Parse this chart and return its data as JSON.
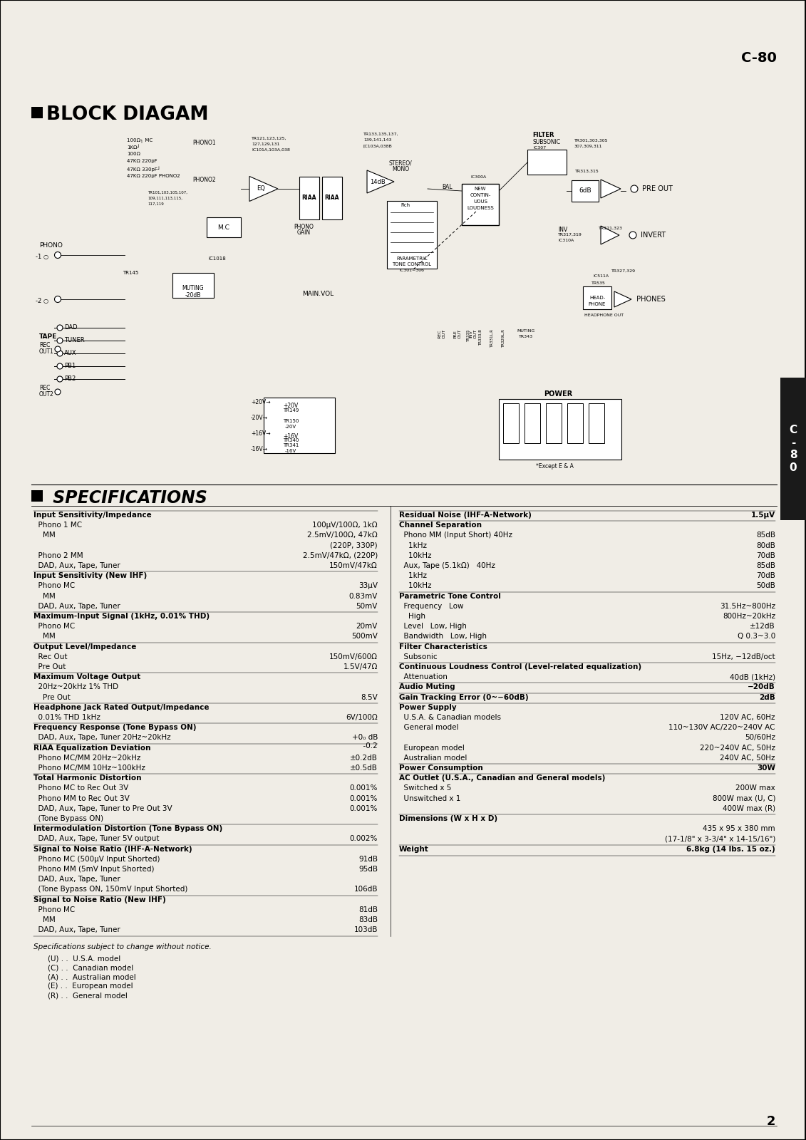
{
  "bg_color": "#f0ede6",
  "text_color": "#1a1a1a",
  "title_c80": "C-80",
  "block_diag_title": "BLOCK DIAGAM",
  "specs_title": "SPECIFICATIONS",
  "page_num": "2",
  "sidebar_color": "#222222",
  "specs_left": [
    [
      "Input Sensitivity/Impedance",
      "",
      "bold"
    ],
    [
      "  Phono 1 MC",
      "100μV/100Ω, 1kΩ",
      "normal"
    ],
    [
      "    MM",
      "2.5mV/100Ω, 47kΩ",
      "normal"
    ],
    [
      "",
      "(220P, 330P)",
      "normal"
    ],
    [
      "  Phono 2 MM",
      "2.5mV/47kΩ, (220P)",
      "normal"
    ],
    [
      "  DAD, Aux, Tape, Tuner",
      "150mV/47kΩ",
      "normal"
    ],
    [
      "Input Sensitivity (New IHF)",
      "",
      "bold"
    ],
    [
      "  Phono MC",
      "33μV",
      "normal"
    ],
    [
      "    MM",
      "0.83mV",
      "normal"
    ],
    [
      "  DAD, Aux, Tape, Tuner",
      "50mV",
      "normal"
    ],
    [
      "Maximum-Input Signal (1kHz, 0.01% THD)",
      "",
      "bold"
    ],
    [
      "  Phono MC",
      "20mV",
      "normal"
    ],
    [
      "    MM",
      "500mV",
      "normal"
    ],
    [
      "Output Level/Impedance",
      "",
      "bold"
    ],
    [
      "  Rec Out",
      "150mV/600Ω",
      "normal"
    ],
    [
      "  Pre Out",
      "1.5V/47Ω",
      "normal"
    ],
    [
      "Maximum Voltage Output",
      "",
      "bold"
    ],
    [
      "  20Hz~20kHz 1% THD",
      "",
      "normal"
    ],
    [
      "    Pre Out",
      "8.5V",
      "normal"
    ],
    [
      "Headphone Jack Rated Output/Impedance",
      "",
      "bold"
    ],
    [
      "  0.01% THD 1kHz",
      "6V/100Ω",
      "normal"
    ],
    [
      "Frequency Response (Tone Bypass ON)",
      "",
      "bold"
    ],
    [
      "  DAD, Aux, Tape, Tuner 20Hz~20kHz",
      "+0₀ dB\n  -0.2",
      "normal"
    ],
    [
      "RIAA Equalization Deviation",
      "",
      "bold"
    ],
    [
      "  Phono MC/MM 20Hz~20kHz",
      "±0.2dB",
      "normal"
    ],
    [
      "  Phono MC/MM 10Hz~100kHz",
      "±0.5dB",
      "normal"
    ],
    [
      "Total Harmonic Distortion",
      "",
      "bold"
    ],
    [
      "  Phono MC to Rec Out 3V",
      "0.001%",
      "normal"
    ],
    [
      "  Phono MM to Rec Out 3V",
      "0.001%",
      "normal"
    ],
    [
      "  DAD, Aux, Tape, Tuner to Pre Out 3V",
      "0.001%",
      "normal"
    ],
    [
      "  (Tone Bypass ON)",
      "",
      "normal"
    ],
    [
      "Intermodulation Distortion (Tone Bypass ON)",
      "",
      "bold"
    ],
    [
      "  DAD, Aux, Tape, Tuner 5V output",
      "0.002%",
      "normal"
    ],
    [
      "Signal to Noise Ratio (IHF-A-Network)",
      "",
      "bold"
    ],
    [
      "  Phono MC (500μV Input Shorted)",
      "91dB",
      "normal"
    ],
    [
      "  Phono MM (5mV Input Shorted)",
      "95dB",
      "normal"
    ],
    [
      "  DAD, Aux, Tape, Tuner",
      "",
      "normal"
    ],
    [
      "  (Tone Bypass ON, 150mV Input Shorted)",
      "106dB",
      "normal"
    ],
    [
      "Signal to Noise Ratio (New IHF)",
      "",
      "bold"
    ],
    [
      "  Phono MC",
      "81dB",
      "normal"
    ],
    [
      "    MM",
      "83dB",
      "normal"
    ],
    [
      "  DAD, Aux, Tape, Tuner",
      "103dB",
      "normal"
    ]
  ],
  "specs_right": [
    [
      "Residual Noise (IHF-A-Network)",
      "1.5μV",
      "bold"
    ],
    [
      "Channel Separation",
      "",
      "bold"
    ],
    [
      "  Phono MM (Input Short) 40Hz",
      "85dB",
      "normal"
    ],
    [
      "    1kHz",
      "80dB",
      "normal"
    ],
    [
      "    10kHz",
      "70dB",
      "normal"
    ],
    [
      "  Aux, Tape (5.1kΩ)   40Hz",
      "85dB",
      "normal"
    ],
    [
      "    1kHz",
      "70dB",
      "normal"
    ],
    [
      "    10kHz",
      "50dB",
      "normal"
    ],
    [
      "Parametric Tone Control",
      "",
      "bold"
    ],
    [
      "  Frequency   Low",
      "31.5Hz~800Hz",
      "normal"
    ],
    [
      "    High",
      "800Hz~20kHz",
      "normal"
    ],
    [
      "  Level   Low, High",
      "±12dB",
      "normal"
    ],
    [
      "  Bandwidth   Low, High",
      "Q 0.3~3.0",
      "normal"
    ],
    [
      "Filter Characteristics",
      "",
      "bold"
    ],
    [
      "  Subsonic",
      "15Hz, −12dB/oct",
      "normal"
    ],
    [
      "Continuous Loudness Control (Level-related equalization)",
      "",
      "bold"
    ],
    [
      "  Attenuation",
      "40dB (1kHz)",
      "normal"
    ],
    [
      "Audio Muting",
      "−20dB",
      "bold"
    ],
    [
      "Gain Tracking Error (0~−60dB)",
      "2dB",
      "bold"
    ],
    [
      "Power Supply",
      "",
      "bold"
    ],
    [
      "  U.S.A. & Canadian models",
      "120V AC, 60Hz",
      "normal"
    ],
    [
      "  General model",
      "110~130V AC/220~240V AC",
      "normal"
    ],
    [
      "",
      "50/60Hz",
      "normal"
    ],
    [
      "  European model",
      "220~240V AC, 50Hz",
      "normal"
    ],
    [
      "  Australian model",
      "240V AC, 50Hz",
      "normal"
    ],
    [
      "Power Consumption",
      "30W",
      "bold"
    ],
    [
      "AC Outlet (U.S.A., Canadian and General models)",
      "",
      "bold"
    ],
    [
      "  Switched x 5",
      "200W max",
      "normal"
    ],
    [
      "  Unswitched x 1",
      "800W max (U, C)",
      "normal"
    ],
    [
      "",
      "400W max (R)",
      "normal"
    ],
    [
      "Dimensions (W x H x D)",
      "",
      "bold"
    ],
    [
      "",
      "435 x 95 x 380 mm",
      "normal"
    ],
    [
      "",
      "(17-1/8\" x 3-3/4\" x 14-15/16\")",
      "normal"
    ],
    [
      "Weight",
      "6.8kg (14 lbs. 15 oz.)",
      "bold"
    ]
  ],
  "footer_notes": [
    "Specifications subject to change without notice.",
    "(U) . .  U.S.A. model",
    "(C) . .  Canadian model",
    "(A) . .  Australian model",
    "(E) . .  European model",
    "(R) . .  General model"
  ]
}
